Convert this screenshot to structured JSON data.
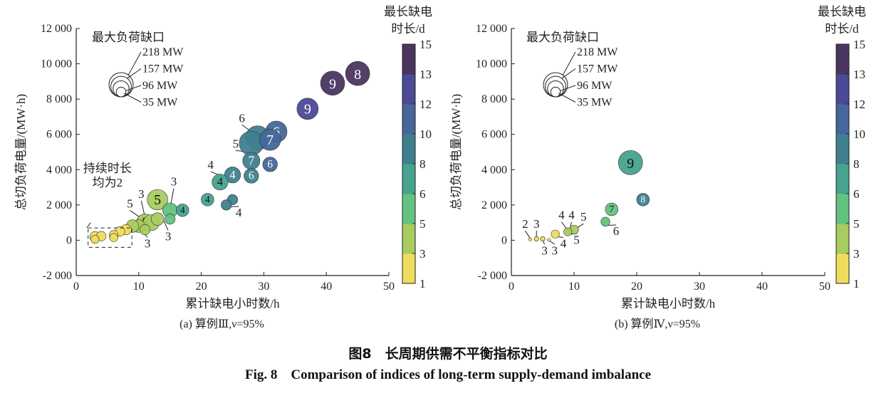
{
  "figure": {
    "caption_cn": "图8　长周期供需不平衡指标对比",
    "caption_en": "Fig. 8　Comparison of indices of long-term supply-demand imbalance"
  },
  "colorbar": {
    "title_line1": "最长缺电",
    "title_line2": "时长/d",
    "ticks": [
      "1",
      "3",
      "5",
      "6",
      "8",
      "10",
      "12",
      "13",
      "15"
    ],
    "bands": [
      "#f0dc5c",
      "#a8cc60",
      "#62c27f",
      "#46a38e",
      "#3f8090",
      "#46679a",
      "#4c4a95",
      "#4a3560"
    ]
  },
  "size_legend": {
    "title": "最大负荷缺口",
    "entries": [
      {
        "label": "218 MW",
        "mw": 218
      },
      {
        "label": "157 MW",
        "mw": 157
      },
      {
        "label": "96 MW",
        "mw": 96
      },
      {
        "label": "35 MW",
        "mw": 35
      }
    ]
  },
  "chart_data": [
    {
      "type": "scatter",
      "subtitle": "(a) 算例Ⅲ,ν=95%",
      "xlabel": "累计缺电小时数/h",
      "ylabel": "总切负荷电量/(MW·h)",
      "xlim": [
        0,
        50
      ],
      "ylim": [
        -2000,
        12000
      ],
      "xticks": [
        "0",
        "10",
        "20",
        "30",
        "40",
        "50"
      ],
      "yticks": [
        "-2 000",
        "0",
        "2 000",
        "4 000",
        "6 000",
        "8 000",
        "10 000",
        "12 000"
      ],
      "points": [
        {
          "x": 45,
          "y": 9450,
          "mw": 218,
          "duration": 14,
          "label": "8"
        },
        {
          "x": 41,
          "y": 8900,
          "mw": 218,
          "duration": 14,
          "label": "9"
        },
        {
          "x": 37,
          "y": 7450,
          "mw": 170,
          "duration": 12.5,
          "label": "9"
        },
        {
          "x": 32,
          "y": 6150,
          "mw": 170,
          "duration": 11,
          "label": "6"
        },
        {
          "x": 29,
          "y": 5800,
          "mw": 218,
          "duration": 9,
          "label": ""
        },
        {
          "x": 31,
          "y": 5700,
          "mw": 170,
          "duration": 11,
          "label": "7"
        },
        {
          "x": 28,
          "y": 5500,
          "mw": 218,
          "duration": 9,
          "label": ""
        },
        {
          "x": 28,
          "y": 4500,
          "mw": 110,
          "duration": 9,
          "label": "7"
        },
        {
          "x": 31,
          "y": 4300,
          "mw": 80,
          "duration": 11,
          "label": "6"
        },
        {
          "x": 28,
          "y": 3650,
          "mw": 80,
          "duration": 9,
          "label": "6"
        },
        {
          "x": 25,
          "y": 3700,
          "mw": 96,
          "duration": 9,
          "label": "4"
        },
        {
          "x": 23,
          "y": 3300,
          "mw": 96,
          "duration": 7,
          "label": "4"
        },
        {
          "x": 21,
          "y": 2300,
          "mw": 60,
          "duration": 7,
          "label": "4"
        },
        {
          "x": 25,
          "y": 2300,
          "mw": 40,
          "duration": 9,
          "label": ""
        },
        {
          "x": 24,
          "y": 2000,
          "mw": 40,
          "duration": 9,
          "label": ""
        },
        {
          "x": 17,
          "y": 1700,
          "mw": 60,
          "duration": 7,
          "label": "4"
        },
        {
          "x": 15,
          "y": 1700,
          "mw": 80,
          "duration": 5.5,
          "label": ""
        },
        {
          "x": 15,
          "y": 1200,
          "mw": 40,
          "duration": 5.5,
          "label": ""
        },
        {
          "x": 13,
          "y": 2300,
          "mw": 157,
          "duration": 4,
          "label": "5"
        },
        {
          "x": 13,
          "y": 1200,
          "mw": 60,
          "duration": 4,
          "label": ""
        },
        {
          "x": 12,
          "y": 1000,
          "mw": 96,
          "duration": 4,
          "label": ""
        },
        {
          "x": 11,
          "y": 1000,
          "mw": 110,
          "duration": 4,
          "label": "5"
        },
        {
          "x": 10,
          "y": 800,
          "mw": 60,
          "duration": 4,
          "label": ""
        },
        {
          "x": 11,
          "y": 600,
          "mw": 40,
          "duration": 4,
          "label": ""
        },
        {
          "x": 9,
          "y": 800,
          "mw": 60,
          "duration": 4,
          "label": ""
        },
        {
          "x": 3,
          "y": 200,
          "mw": 40,
          "duration": 2,
          "label": ""
        },
        {
          "x": 4,
          "y": 230,
          "mw": 35,
          "duration": 2,
          "label": ""
        },
        {
          "x": 3,
          "y": 50,
          "mw": 25,
          "duration": 2,
          "label": ""
        },
        {
          "x": 6,
          "y": 300,
          "mw": 30,
          "duration": 2,
          "label": ""
        },
        {
          "x": 6,
          "y": 150,
          "mw": 25,
          "duration": 2,
          "label": ""
        },
        {
          "x": 7,
          "y": 500,
          "mw": 35,
          "duration": 2,
          "label": ""
        },
        {
          "x": 8,
          "y": 600,
          "mw": 40,
          "duration": 2,
          "label": ""
        }
      ],
      "annotations": [
        {
          "text": "6",
          "x": 26.5,
          "y": 6700,
          "tx": 29,
          "ty": 5900
        },
        {
          "text": "5",
          "x": 25.5,
          "y": 5250,
          "tx": 27.5,
          "ty": 5000
        },
        {
          "text": "4",
          "x": 21.5,
          "y": 4050,
          "tx": 23.5,
          "ty": 3600
        },
        {
          "text": "4",
          "x": 26,
          "y": 1350,
          "tx": 24.5,
          "ty": 1900
        },
        {
          "text": "3",
          "x": 10.4,
          "y": 2400,
          "tx": 11,
          "ty": 1300
        },
        {
          "text": "5",
          "x": 8.6,
          "y": 1850,
          "tx": 10.2,
          "ty": 1300
        },
        {
          "text": "3",
          "x": 15.6,
          "y": 3100,
          "tx": 15,
          "ty": 1800
        },
        {
          "text": "3",
          "x": 14.7,
          "y": 0,
          "tx": 14,
          "ty": 1100
        },
        {
          "text": "3",
          "x": 11.4,
          "y": -400,
          "tx": 10,
          "ty": 700
        }
      ],
      "note": {
        "line1": "持续时长",
        "line2": "均为2"
      }
    },
    {
      "type": "scatter",
      "subtitle": "(b) 算例Ⅳ,ν=95%",
      "xlabel": "累计缺电小时数/h",
      "ylabel": "总切负荷电量/(MW·h)",
      "xlim": [
        0,
        50
      ],
      "ylim": [
        -2000,
        12000
      ],
      "xticks": [
        "0",
        "10",
        "20",
        "30",
        "40",
        "50"
      ],
      "yticks": [
        "-2 000",
        "0",
        "2 000",
        "4 000",
        "6 000",
        "8 000",
        "10 000",
        "12 000"
      ],
      "points": [
        {
          "x": 19,
          "y": 4400,
          "mw": 218,
          "duration": 7,
          "label": "9"
        },
        {
          "x": 21,
          "y": 2300,
          "mw": 60,
          "duration": 9,
          "label": "8"
        },
        {
          "x": 16,
          "y": 1750,
          "mw": 60,
          "duration": 5.5,
          "label": "7"
        },
        {
          "x": 15,
          "y": 1050,
          "mw": 30,
          "duration": 5.5,
          "label": ""
        },
        {
          "x": 10,
          "y": 600,
          "mw": 30,
          "duration": 4,
          "label": ""
        },
        {
          "x": 9,
          "y": 480,
          "mw": 25,
          "duration": 4,
          "label": ""
        },
        {
          "x": 7,
          "y": 350,
          "mw": 25,
          "duration": 2,
          "label": ""
        },
        {
          "x": 6,
          "y": 20,
          "mw": 4,
          "duration": 2,
          "label": ""
        },
        {
          "x": 5,
          "y": 80,
          "mw": 8,
          "duration": 2,
          "label": ""
        },
        {
          "x": 4,
          "y": 80,
          "mw": 8,
          "duration": 2,
          "label": ""
        },
        {
          "x": 3,
          "y": 50,
          "mw": 4,
          "duration": 2,
          "label": ""
        }
      ],
      "annotations": [
        {
          "text": "2",
          "x": 2.2,
          "y": 700,
          "tx": 3,
          "ty": 100
        },
        {
          "text": "3",
          "x": 4,
          "y": 700,
          "tx": 4,
          "ty": 150
        },
        {
          "text": "3",
          "x": 5.3,
          "y": -800,
          "tx": 5,
          "ty": 0
        },
        {
          "text": "3",
          "x": 6.9,
          "y": -800,
          "tx": 6,
          "ty": 0
        },
        {
          "text": "4",
          "x": 8.3,
          "y": -400,
          "tx": 7.3,
          "ty": 200
        },
        {
          "text": "4",
          "x": 8,
          "y": 1200,
          "tx": 9,
          "ty": 550
        },
        {
          "text": "4",
          "x": 9.6,
          "y": 1200,
          "tx": 9.3,
          "ty": 600
        },
        {
          "text": "5",
          "x": 11.5,
          "y": 1100,
          "tx": 10.5,
          "ty": 700
        },
        {
          "text": "5",
          "x": 10.4,
          "y": -200,
          "tx": 9.5,
          "ty": 350
        },
        {
          "text": "6",
          "x": 16.7,
          "y": 300,
          "tx": 15.5,
          "ty": 850
        }
      ]
    }
  ]
}
